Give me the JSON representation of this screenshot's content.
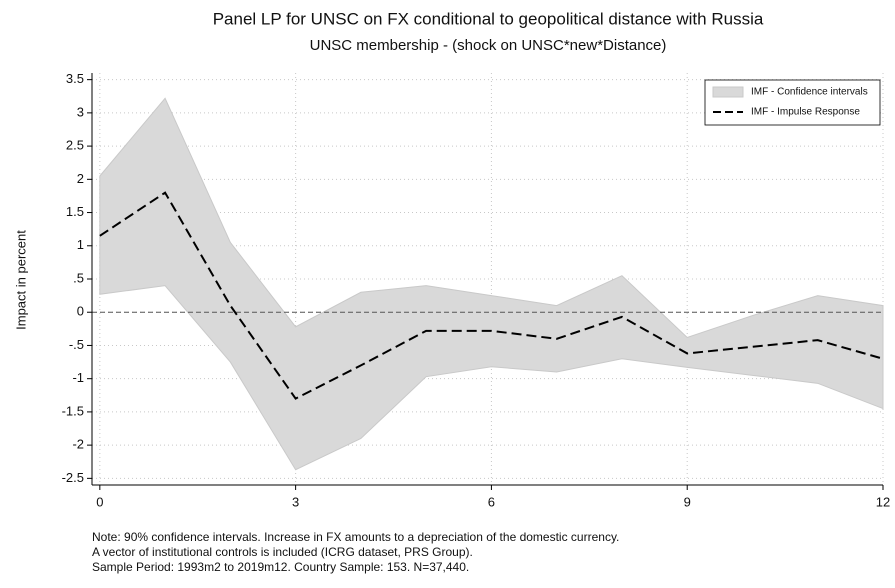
{
  "chart_data": {
    "type": "line",
    "title": "Panel LP for UNSC on FX conditional to geopolitical distance with Russia",
    "subtitle": "UNSC membership - (shock on UNSC*new*Distance)",
    "y_label": "Impact in percent",
    "notes": [
      "Note: 90% confidence intervals. Increase in FX amounts to a depreciation of the domestic currency.",
      "A vector of institutional controls is included (ICRG dataset, PRS Group).",
      "Sample Period: 1993m2 to 2019m12. Country Sample: 153. N=37,440."
    ],
    "x": [
      0,
      1,
      2,
      3,
      4,
      5,
      6,
      7,
      8,
      9,
      10,
      11,
      12
    ],
    "band": {
      "name": "IMF - Confidence intervals",
      "color": "#d9d9d9",
      "upper": [
        2.05,
        3.22,
        1.05,
        -0.22,
        0.3,
        0.4,
        0.25,
        0.1,
        0.55,
        -0.38,
        -0.05,
        0.25,
        0.1
      ],
      "lower": [
        0.27,
        0.4,
        -0.75,
        -2.37,
        -1.9,
        -0.97,
        -0.82,
        -0.9,
        -0.7,
        -0.83,
        -0.95,
        -1.07,
        -1.45
      ]
    },
    "series": [
      {
        "name": "IMF - Impulse Response",
        "color": "#000000",
        "values": [
          1.15,
          1.8,
          0.1,
          -1.3,
          -0.8,
          -0.28,
          -0.28,
          -0.4,
          -0.07,
          -0.62,
          -0.52,
          -0.42,
          -0.7
        ]
      }
    ],
    "reference_line": 0,
    "xlim": [
      -0.12,
      12
    ],
    "ylim": [
      -2.6,
      3.6
    ],
    "xticks": [
      0,
      3,
      6,
      9,
      12
    ],
    "yticks": [
      3.5,
      3,
      2.5,
      2,
      1.5,
      1,
      {
        "value": 0.5,
        "label": ".5"
      },
      0,
      {
        "value": -0.5,
        "label": "-.5"
      },
      -1,
      -1.5,
      -2,
      -2.5
    ],
    "grid": true,
    "legend": "top-right"
  }
}
